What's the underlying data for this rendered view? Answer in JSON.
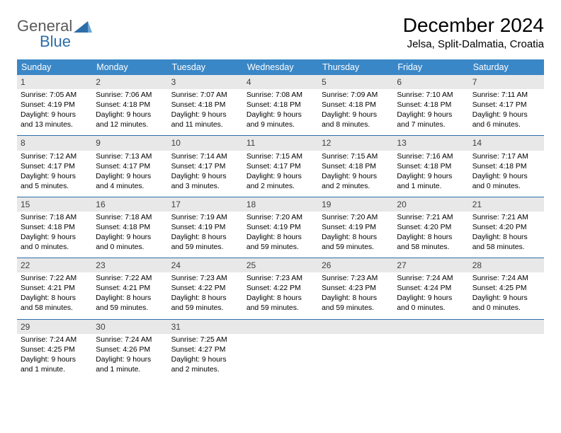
{
  "brand": {
    "general": "General",
    "blue": "Blue",
    "triangle_color": "#2d6ea8"
  },
  "title": "December 2024",
  "location": "Jelsa, Split-Dalmatia, Croatia",
  "theme": {
    "header_bg": "#3a87c7",
    "header_fg": "#ffffff",
    "row_border": "#2d6ea8",
    "daynum_bg": "#e8e8e8",
    "text_color": "#000000",
    "title_fontsize": 28,
    "location_fontsize": 15,
    "dayheader_fontsize": 12.5,
    "cell_fontsize": 10.4
  },
  "day_headers": [
    "Sunday",
    "Monday",
    "Tuesday",
    "Wednesday",
    "Thursday",
    "Friday",
    "Saturday"
  ],
  "weeks": [
    [
      {
        "n": "1",
        "sr": "Sunrise: 7:05 AM",
        "ss": "Sunset: 4:19 PM",
        "dl": "Daylight: 9 hours and 13 minutes."
      },
      {
        "n": "2",
        "sr": "Sunrise: 7:06 AM",
        "ss": "Sunset: 4:18 PM",
        "dl": "Daylight: 9 hours and 12 minutes."
      },
      {
        "n": "3",
        "sr": "Sunrise: 7:07 AM",
        "ss": "Sunset: 4:18 PM",
        "dl": "Daylight: 9 hours and 11 minutes."
      },
      {
        "n": "4",
        "sr": "Sunrise: 7:08 AM",
        "ss": "Sunset: 4:18 PM",
        "dl": "Daylight: 9 hours and 9 minutes."
      },
      {
        "n": "5",
        "sr": "Sunrise: 7:09 AM",
        "ss": "Sunset: 4:18 PM",
        "dl": "Daylight: 9 hours and 8 minutes."
      },
      {
        "n": "6",
        "sr": "Sunrise: 7:10 AM",
        "ss": "Sunset: 4:18 PM",
        "dl": "Daylight: 9 hours and 7 minutes."
      },
      {
        "n": "7",
        "sr": "Sunrise: 7:11 AM",
        "ss": "Sunset: 4:17 PM",
        "dl": "Daylight: 9 hours and 6 minutes."
      }
    ],
    [
      {
        "n": "8",
        "sr": "Sunrise: 7:12 AM",
        "ss": "Sunset: 4:17 PM",
        "dl": "Daylight: 9 hours and 5 minutes."
      },
      {
        "n": "9",
        "sr": "Sunrise: 7:13 AM",
        "ss": "Sunset: 4:17 PM",
        "dl": "Daylight: 9 hours and 4 minutes."
      },
      {
        "n": "10",
        "sr": "Sunrise: 7:14 AM",
        "ss": "Sunset: 4:17 PM",
        "dl": "Daylight: 9 hours and 3 minutes."
      },
      {
        "n": "11",
        "sr": "Sunrise: 7:15 AM",
        "ss": "Sunset: 4:17 PM",
        "dl": "Daylight: 9 hours and 2 minutes."
      },
      {
        "n": "12",
        "sr": "Sunrise: 7:15 AM",
        "ss": "Sunset: 4:18 PM",
        "dl": "Daylight: 9 hours and 2 minutes."
      },
      {
        "n": "13",
        "sr": "Sunrise: 7:16 AM",
        "ss": "Sunset: 4:18 PM",
        "dl": "Daylight: 9 hours and 1 minute."
      },
      {
        "n": "14",
        "sr": "Sunrise: 7:17 AM",
        "ss": "Sunset: 4:18 PM",
        "dl": "Daylight: 9 hours and 0 minutes."
      }
    ],
    [
      {
        "n": "15",
        "sr": "Sunrise: 7:18 AM",
        "ss": "Sunset: 4:18 PM",
        "dl": "Daylight: 9 hours and 0 minutes."
      },
      {
        "n": "16",
        "sr": "Sunrise: 7:18 AM",
        "ss": "Sunset: 4:18 PM",
        "dl": "Daylight: 9 hours and 0 minutes."
      },
      {
        "n": "17",
        "sr": "Sunrise: 7:19 AM",
        "ss": "Sunset: 4:19 PM",
        "dl": "Daylight: 8 hours and 59 minutes."
      },
      {
        "n": "18",
        "sr": "Sunrise: 7:20 AM",
        "ss": "Sunset: 4:19 PM",
        "dl": "Daylight: 8 hours and 59 minutes."
      },
      {
        "n": "19",
        "sr": "Sunrise: 7:20 AM",
        "ss": "Sunset: 4:19 PM",
        "dl": "Daylight: 8 hours and 59 minutes."
      },
      {
        "n": "20",
        "sr": "Sunrise: 7:21 AM",
        "ss": "Sunset: 4:20 PM",
        "dl": "Daylight: 8 hours and 58 minutes."
      },
      {
        "n": "21",
        "sr": "Sunrise: 7:21 AM",
        "ss": "Sunset: 4:20 PM",
        "dl": "Daylight: 8 hours and 58 minutes."
      }
    ],
    [
      {
        "n": "22",
        "sr": "Sunrise: 7:22 AM",
        "ss": "Sunset: 4:21 PM",
        "dl": "Daylight: 8 hours and 58 minutes."
      },
      {
        "n": "23",
        "sr": "Sunrise: 7:22 AM",
        "ss": "Sunset: 4:21 PM",
        "dl": "Daylight: 8 hours and 59 minutes."
      },
      {
        "n": "24",
        "sr": "Sunrise: 7:23 AM",
        "ss": "Sunset: 4:22 PM",
        "dl": "Daylight: 8 hours and 59 minutes."
      },
      {
        "n": "25",
        "sr": "Sunrise: 7:23 AM",
        "ss": "Sunset: 4:22 PM",
        "dl": "Daylight: 8 hours and 59 minutes."
      },
      {
        "n": "26",
        "sr": "Sunrise: 7:23 AM",
        "ss": "Sunset: 4:23 PM",
        "dl": "Daylight: 8 hours and 59 minutes."
      },
      {
        "n": "27",
        "sr": "Sunrise: 7:24 AM",
        "ss": "Sunset: 4:24 PM",
        "dl": "Daylight: 9 hours and 0 minutes."
      },
      {
        "n": "28",
        "sr": "Sunrise: 7:24 AM",
        "ss": "Sunset: 4:25 PM",
        "dl": "Daylight: 9 hours and 0 minutes."
      }
    ],
    [
      {
        "n": "29",
        "sr": "Sunrise: 7:24 AM",
        "ss": "Sunset: 4:25 PM",
        "dl": "Daylight: 9 hours and 1 minute."
      },
      {
        "n": "30",
        "sr": "Sunrise: 7:24 AM",
        "ss": "Sunset: 4:26 PM",
        "dl": "Daylight: 9 hours and 1 minute."
      },
      {
        "n": "31",
        "sr": "Sunrise: 7:25 AM",
        "ss": "Sunset: 4:27 PM",
        "dl": "Daylight: 9 hours and 2 minutes."
      },
      {
        "n": "",
        "sr": "",
        "ss": "",
        "dl": ""
      },
      {
        "n": "",
        "sr": "",
        "ss": "",
        "dl": ""
      },
      {
        "n": "",
        "sr": "",
        "ss": "",
        "dl": ""
      },
      {
        "n": "",
        "sr": "",
        "ss": "",
        "dl": ""
      }
    ]
  ]
}
